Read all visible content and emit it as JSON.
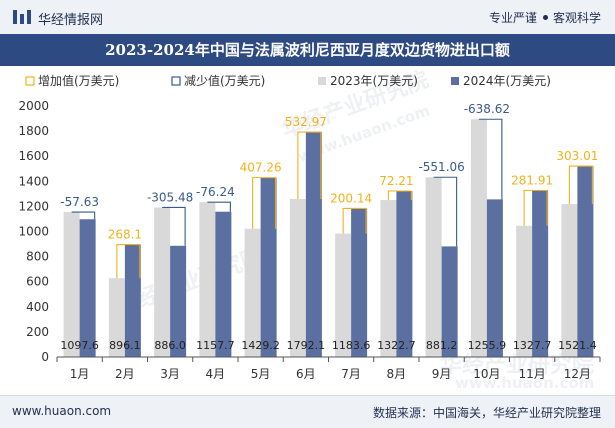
{
  "header": {
    "brand": "华经情报网",
    "tagline_left": "专业严谨",
    "tagline_right": "客观科学"
  },
  "footer": {
    "url": "www.huaon.com",
    "source": "数据来源：中国海关，华经产业研究院整理"
  },
  "watermark": {
    "text": "华经产业研究院",
    "url": "www.huaon.com"
  },
  "colors": {
    "title_bg": "#2d4a82",
    "bar_2023": "#d9d9d9",
    "bar_2024": "#5b6fa0",
    "increase": "#f2b21b",
    "decrease": "#3a5a8c"
  },
  "chart_data": {
    "type": "bar",
    "title": "2023-2024年中国与法属波利尼西亚月度双边货物进出口额",
    "categories": [
      "1月",
      "2月",
      "3月",
      "4月",
      "5月",
      "6月",
      "7月",
      "8月",
      "9月",
      "10月",
      "11月",
      "12月"
    ],
    "series": [
      {
        "name": "2023年(万美元)",
        "values": [
          1155.2,
          628.0,
          1191.5,
          1233.9,
          1022.0,
          1259.2,
          983.4,
          1250.5,
          1432.3,
          1894.5,
          1045.8,
          1218.4
        ]
      },
      {
        "name": "2024年(万美元)",
        "values": [
          1097.6,
          896.1,
          886.0,
          1157.7,
          1429.2,
          1792.1,
          1183.6,
          1322.7,
          881.2,
          1255.9,
          1327.7,
          1521.4
        ]
      }
    ],
    "changes": [
      -57.63,
      268.1,
      -305.48,
      -76.24,
      407.26,
      532.97,
      200.14,
      72.21,
      -551.06,
      -638.62,
      281.91,
      303.01
    ],
    "change_labels": [
      "-57.63",
      "268.1",
      "-305.48",
      "-76.24",
      "407.26",
      "532.97",
      "200.14",
      "72.21",
      "-551.06",
      "-638.62",
      "281.91",
      "303.01"
    ],
    "bar_labels_2024": [
      "1097.6",
      "896.1",
      "886.0",
      "1157.7",
      "1429.2",
      "1792.1",
      "1183.6",
      "1322.7",
      "881.2",
      "1255.9",
      "1327.7",
      "1521.4"
    ],
    "legend": [
      "增加值(万美元)",
      "减少值(万美元)",
      "2023年(万美元)",
      "2024年(万美元)"
    ],
    "legend_position": "top-left",
    "y_ticks": [
      "0",
      "200",
      "400",
      "600",
      "800",
      "1000",
      "1200",
      "1400",
      "1600",
      "1800",
      "2000"
    ],
    "ylim": [
      0,
      2000
    ],
    "grid": false
  }
}
